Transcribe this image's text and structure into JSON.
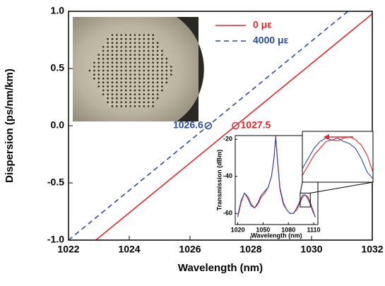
{
  "chart_data": [
    {
      "type": "line",
      "xlabel": "Wavelength (nm)",
      "ylabel": "Dispersion (ps/nm/km)",
      "xlim": [
        1022,
        1032
      ],
      "ylim": [
        -1,
        1
      ],
      "xticks": [
        1022,
        1024,
        1026,
        1028,
        1030,
        1032
      ],
      "yticks": [
        {
          "value": -1,
          "label": "-1.0"
        },
        {
          "value": -0.5,
          "label": "-0.5"
        },
        {
          "value": 0,
          "label": "0.0"
        },
        {
          "value": 0.5,
          "label": "0.5"
        },
        {
          "value": 1,
          "label": "1.0"
        }
      ],
      "series": [
        {
          "name": "0 με",
          "color": "#e8232a",
          "dashed": false,
          "x": [
            1022.9,
            1032
          ],
          "values": [
            -1,
            0.978
          ]
        },
        {
          "name": "4000 με",
          "color": "#2b4c9b",
          "dashed": true,
          "x": [
            1022,
            1031.2
          ],
          "values": [
            -1,
            1
          ]
        }
      ],
      "annotations": [
        {
          "text": "1026.6",
          "x": 1026.6,
          "y": 0,
          "color": "#2b4c9b",
          "side": "left"
        },
        {
          "text": "1027.5",
          "x": 1027.5,
          "y": 0,
          "color": "#e8232a",
          "side": "right"
        }
      ]
    },
    {
      "type": "line",
      "xlabel": "Wavelength (nm)",
      "ylabel": "Transmission (dBm)",
      "xlim": [
        1017,
        1115
      ],
      "ylim": [
        -66,
        -18
      ],
      "xticks": [
        1020,
        1050,
        1080,
        1110
      ],
      "yticks": [
        -60,
        -40,
        -20
      ],
      "series": [
        {
          "color": "#e8232a",
          "x": [
            1020,
            1024,
            1028,
            1032,
            1036,
            1040,
            1044,
            1048,
            1052,
            1056,
            1060,
            1063,
            1065,
            1067,
            1070,
            1074,
            1078,
            1082,
            1086,
            1090,
            1094,
            1097,
            1100,
            1103,
            1106,
            1109,
            1112
          ],
          "values": [
            -62,
            -54,
            -49,
            -51,
            -55,
            -57,
            -55,
            -51,
            -49,
            -46,
            -40,
            -30,
            -18,
            -30,
            -46,
            -54,
            -58,
            -60,
            -60,
            -58,
            -54,
            -51,
            -50,
            -51,
            -54,
            -58,
            -62
          ]
        },
        {
          "color": "#2b4c9b",
          "x": [
            1020,
            1024,
            1028,
            1032,
            1036,
            1040,
            1044,
            1048,
            1052,
            1056,
            1060,
            1063,
            1065,
            1067,
            1070,
            1074,
            1078,
            1082,
            1086,
            1090,
            1094,
            1097,
            1100,
            1103,
            1106,
            1109,
            1112
          ],
          "values": [
            -61,
            -53,
            -49,
            -52,
            -56,
            -57,
            -54,
            -50,
            -48,
            -46,
            -40,
            -30,
            -19,
            -31,
            -47,
            -55,
            -58,
            -60,
            -60,
            -57,
            -53,
            -50,
            -50,
            -52,
            -55,
            -59,
            -62
          ]
        }
      ]
    },
    {
      "type": "line",
      "xlim": [
        1094,
        1106
      ],
      "ylim": [
        -56.5,
        -49
      ],
      "series": [
        {
          "color": "#e8232a",
          "x": [
            1094,
            1095,
            1096,
            1097,
            1098,
            1099,
            1100,
            1101,
            1102,
            1103,
            1104,
            1105,
            1106
          ],
          "values": [
            -55.5,
            -54,
            -52.5,
            -51.5,
            -50.5,
            -50.3,
            -50.4,
            -50,
            -49.8,
            -50.2,
            -51,
            -52.5,
            -55
          ]
        },
        {
          "color": "#2b4c9b",
          "x": [
            1094,
            1095,
            1096,
            1097,
            1098,
            1099,
            1100,
            1101,
            1102,
            1103,
            1104,
            1105,
            1106
          ],
          "values": [
            -54.5,
            -53,
            -51.5,
            -50.5,
            -50,
            -50.3,
            -50,
            -50.5,
            -50.8,
            -51.5,
            -53,
            -55,
            -56
          ]
        }
      ]
    }
  ]
}
